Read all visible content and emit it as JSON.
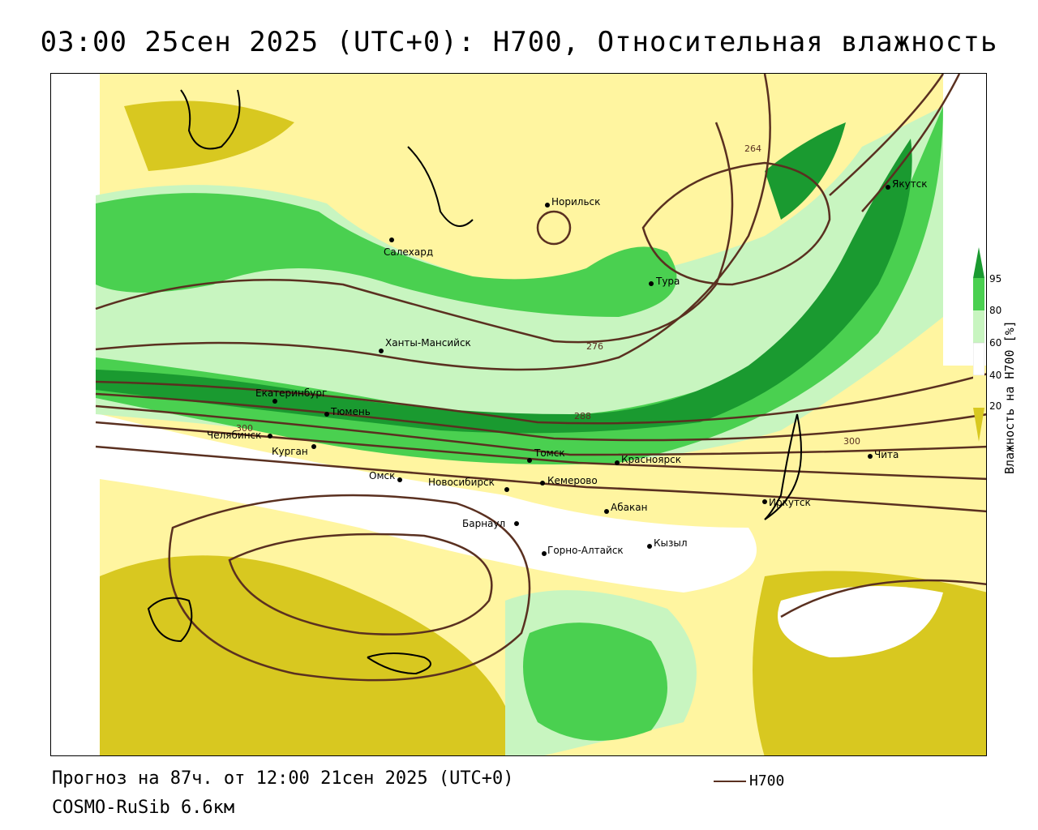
{
  "title": "03:00 25сен 2025 (UTC+0): H700, Относительная влажность",
  "forecast_text": "Прогноз на 87ч. от 12:00 21сен 2025 (UTC+0)",
  "model_text": "COSMO-RuSib 6.6км",
  "legend": {
    "line_label": "H700",
    "line_color": "#5a3020"
  },
  "colorbar": {
    "title": "Влажность на H700 [%]",
    "ticks": [
      "95",
      "80",
      "60",
      "40",
      "20"
    ],
    "colors": {
      "very_dry": "#d8c820",
      "dry": "#fff5a0",
      "neutral": "#ffffff",
      "moist": "#c8f5c0",
      "wet": "#4ad050",
      "very_wet": "#1a9a30"
    }
  },
  "contour_labels": [
    "264",
    "276",
    "288",
    "300",
    "300"
  ],
  "cities": [
    {
      "name": "Норильск"
    },
    {
      "name": "Якутск"
    },
    {
      "name": "Салехард"
    },
    {
      "name": "Тура"
    },
    {
      "name": "Ханты-Мансийск"
    },
    {
      "name": "Екатеринбург"
    },
    {
      "name": "Тюмень"
    },
    {
      "name": "Челябинск"
    },
    {
      "name": "Курган"
    },
    {
      "name": "Омск"
    },
    {
      "name": "Новосибирск"
    },
    {
      "name": "Томск"
    },
    {
      "name": "Кемерово"
    },
    {
      "name": "Красноярск"
    },
    {
      "name": "Барнаул"
    },
    {
      "name": "Абакан"
    },
    {
      "name": "Горно-Алтайск"
    },
    {
      "name": "Кызыл"
    },
    {
      "name": "Иркутск"
    },
    {
      "name": "Чита"
    }
  ]
}
